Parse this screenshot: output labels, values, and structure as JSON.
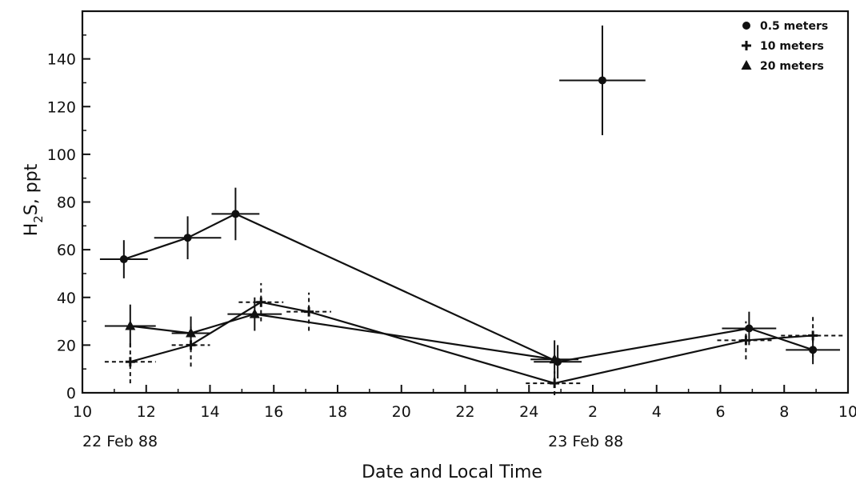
{
  "chart_data": {
    "type": "scatter",
    "title": "",
    "ylabel_main": "H",
    "ylabel_sub": "2",
    "ylabel_rest": "S, ppt",
    "xlabel": "Date and Local Time",
    "ylim": [
      0,
      160
    ],
    "yticks": [
      0,
      20,
      40,
      60,
      80,
      100,
      120,
      140
    ],
    "xlim_hours": [
      10,
      34
    ],
    "xticks": [
      {
        "hour": 10,
        "label": "10"
      },
      {
        "hour": 12,
        "label": "12"
      },
      {
        "hour": 14,
        "label": "14"
      },
      {
        "hour": 16,
        "label": "16"
      },
      {
        "hour": 18,
        "label": "18"
      },
      {
        "hour": 20,
        "label": "20"
      },
      {
        "hour": 22,
        "label": "22"
      },
      {
        "hour": 24,
        "label": "24"
      },
      {
        "hour": 26,
        "label": "2"
      },
      {
        "hour": 28,
        "label": "4"
      },
      {
        "hour": 30,
        "label": "6"
      },
      {
        "hour": 32,
        "label": "8"
      },
      {
        "hour": 34,
        "label": "10"
      }
    ],
    "date_labels": [
      {
        "hour": 10,
        "label": "22 Feb 88"
      },
      {
        "hour": 24.6,
        "label": "23 Feb 88"
      }
    ],
    "legend_position": "top-right",
    "series": [
      {
        "name": "0.5 meters",
        "marker": "circle",
        "connected": true,
        "points": [
          {
            "x": 11.3,
            "y": 56,
            "xerr": 0.75,
            "yerr": 8
          },
          {
            "x": 13.3,
            "y": 65,
            "xerr": 1.05,
            "yerr": 9
          },
          {
            "x": 14.8,
            "y": 75,
            "xerr": 0.75,
            "yerr": 11
          },
          {
            "x": 24.9,
            "y": 13,
            "xerr": 0.75,
            "yerr": 7
          },
          {
            "x": 30.9,
            "y": 27,
            "xerr": 0.85,
            "yerr": 7
          },
          {
            "x": 32.9,
            "y": 18,
            "xerr": 0.85,
            "yerr": 6
          }
        ],
        "isolated_points": [
          {
            "x": 26.3,
            "y": 131,
            "xerr": 1.35,
            "yerr": 23
          }
        ]
      },
      {
        "name": "10 meters",
        "marker": "plus",
        "connected": true,
        "points": [
          {
            "x": 11.5,
            "y": 13,
            "xerr": 0.8,
            "yerr": 9
          },
          {
            "x": 13.4,
            "y": 20,
            "xerr": 0.6,
            "yerr": 9
          },
          {
            "x": 15.6,
            "y": 38,
            "xerr": 0.7,
            "yerr": 8
          },
          {
            "x": 17.1,
            "y": 34,
            "xerr": 0.7,
            "yerr": 8
          },
          {
            "x": 24.8,
            "y": 4,
            "xerr": 0.9,
            "yerr": 5
          },
          {
            "x": 30.8,
            "y": 22,
            "xerr": 0.9,
            "yerr": 8
          },
          {
            "x": 32.9,
            "y": 24,
            "xerr": 1.0,
            "yerr": 9
          }
        ]
      },
      {
        "name": "20 meters",
        "marker": "triangle",
        "connected": true,
        "points": [
          {
            "x": 11.5,
            "y": 28,
            "xerr": 0.8,
            "yerr": 9
          },
          {
            "x": 13.4,
            "y": 25,
            "xerr": 0.6,
            "yerr": 7
          },
          {
            "x": 15.4,
            "y": 33,
            "xerr": 0.85,
            "yerr": 7
          },
          {
            "x": 24.8,
            "y": 14,
            "xerr": 0.75,
            "yerr": 8
          }
        ]
      }
    ]
  }
}
